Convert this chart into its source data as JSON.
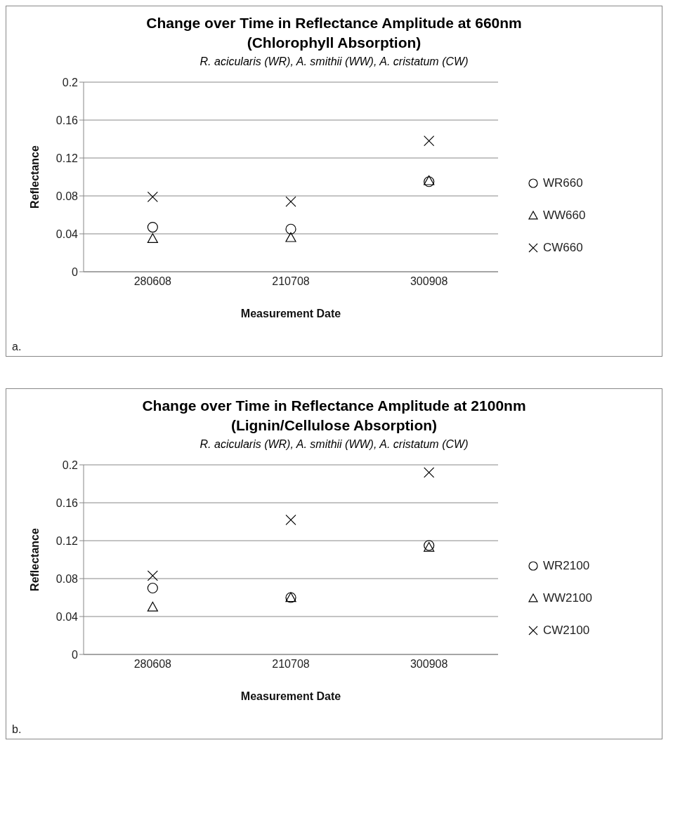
{
  "chart_data": [
    {
      "type": "scatter",
      "title": "Change over Time in Reflectance Amplitude at 660nm (Chlorophyll Absorption)",
      "subtitle": "R. acicularis (WR), A. smithii (WW), A. cristatum (CW)",
      "xlabel": "Measurement Date",
      "ylabel": "Reflectance",
      "annotations": [
        "a."
      ],
      "categories": [
        "280608",
        "210708",
        "300908"
      ],
      "series": [
        {
          "name": "WR660",
          "color": "#000000",
          "marker": "circle",
          "values": [
            0.047,
            0.045,
            0.095
          ]
        },
        {
          "name": "WW660",
          "color": "#000000",
          "marker": "triangle",
          "values": [
            0.035,
            0.036,
            0.096
          ]
        },
        {
          "name": "CW660",
          "color": "#000000",
          "marker": "cross",
          "values": [
            0.079,
            0.074,
            0.138
          ]
        }
      ],
      "ylim": [
        0,
        0.2
      ],
      "yticks": [
        0,
        0.04,
        0.08,
        0.12,
        0.16,
        0.2
      ],
      "grid": "y",
      "legend": "right"
    },
    {
      "type": "scatter",
      "title": "Change over Time in Reflectance Amplitude at 2100nm (Lignin/Cellulose Absorption)",
      "subtitle": "R. acicularis (WR), A. smithii (WW), A. cristatum (CW)",
      "xlabel": "Measurement Date",
      "ylabel": "Reflectance",
      "annotations": [
        "b."
      ],
      "categories": [
        "280608",
        "210708",
        "300908"
      ],
      "series": [
        {
          "name": "WR2100",
          "color": "#000000",
          "marker": "circle",
          "values": [
            0.07,
            0.06,
            0.115
          ]
        },
        {
          "name": "WW2100",
          "color": "#000000",
          "marker": "triangle",
          "values": [
            0.05,
            0.06,
            0.113
          ]
        },
        {
          "name": "CW2100",
          "color": "#000000",
          "marker": "cross",
          "values": [
            0.083,
            0.142,
            0.192
          ]
        }
      ],
      "ylim": [
        0,
        0.2
      ],
      "yticks": [
        0,
        0.04,
        0.08,
        0.12,
        0.16,
        0.2
      ],
      "grid": "y",
      "legend": "right"
    }
  ]
}
